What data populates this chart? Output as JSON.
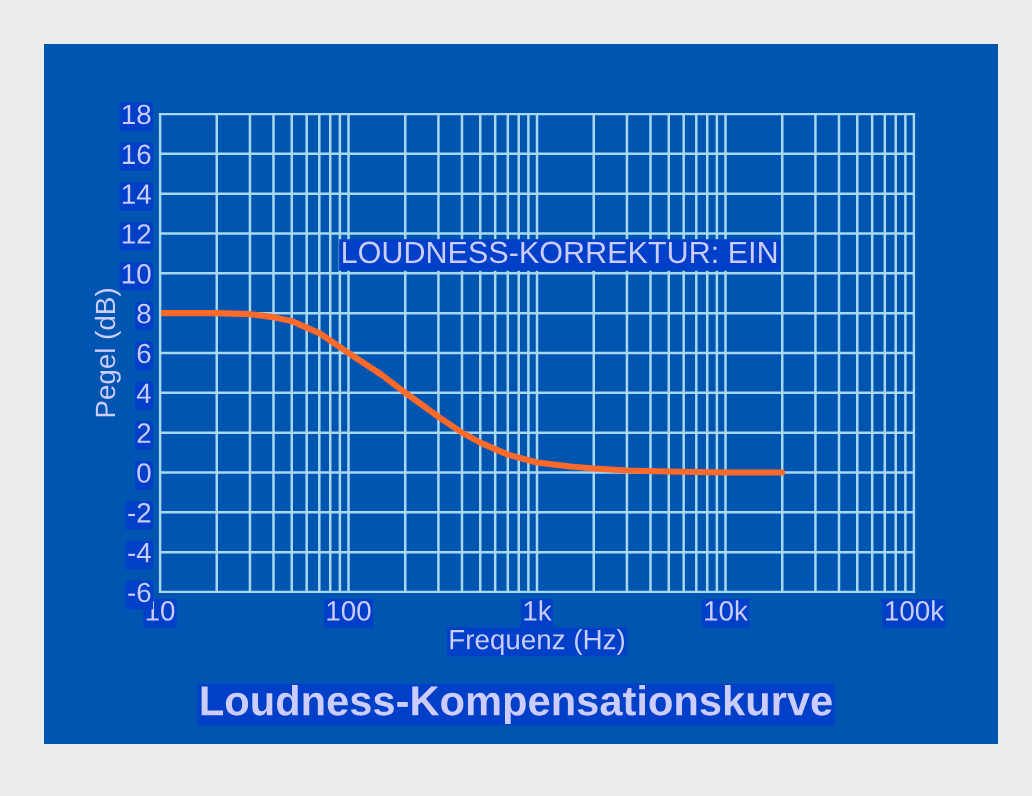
{
  "chart_data": {
    "type": "line",
    "title": "Loudness-Kompensationskurve",
    "xlabel": "Frequenz (Hz)",
    "ylabel": "Pegel (dB)",
    "annotations": [
      "LOUDNESS-KORREKTUR: EIN"
    ],
    "log": "x",
    "x": [
      10,
      20,
      30,
      40,
      50,
      70,
      100,
      150,
      200,
      300,
      400,
      500,
      700,
      1000,
      1500,
      2000,
      3000,
      5000,
      10000,
      20000
    ],
    "series": [
      {
        "color": "#ff6a2a",
        "values": [
          8,
          8,
          7.95,
          7.8,
          7.6,
          7.0,
          6.0,
          4.9,
          4.0,
          2.8,
          2.0,
          1.5,
          0.9,
          0.5,
          0.3,
          0.2,
          0.1,
          0.05,
          0,
          0
        ]
      }
    ],
    "xlim": [
      10,
      100000
    ],
    "xticks": [
      10,
      100,
      {
        "value": 1000,
        "label": "1k"
      },
      {
        "value": 10000,
        "label": "10k"
      },
      {
        "value": 100000,
        "label": "100k"
      }
    ],
    "ylim": [
      -6,
      18
    ],
    "yticks": [
      -6,
      -4,
      -2,
      0,
      2,
      4,
      6,
      8,
      10,
      12,
      14,
      16,
      18
    ],
    "grid": true,
    "legend": false,
    "marker": "none",
    "line_style": "solid"
  }
}
